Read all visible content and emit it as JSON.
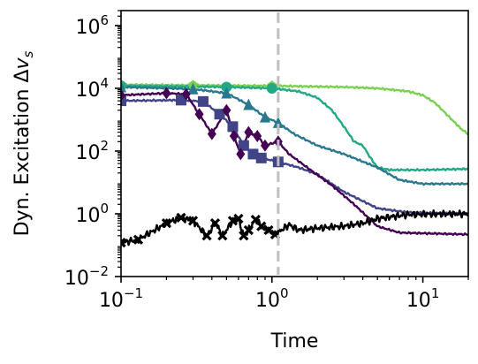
{
  "chart_data": {
    "type": "line",
    "xlabel": "Time",
    "ylabel": "Dyn. Excitation Δv_s",
    "xscale": "log",
    "yscale": "log",
    "xlim": [
      0.1,
      20
    ],
    "ylim": [
      0.01,
      3000000
    ],
    "x_ticks": [
      {
        "value": 0.1,
        "base": "10",
        "exp": "−1"
      },
      {
        "value": 1,
        "base": "10",
        "exp": "0"
      },
      {
        "value": 10,
        "base": "10",
        "exp": "1"
      }
    ],
    "y_ticks": [
      {
        "value": 0.01,
        "base": "10",
        "exp": "−2"
      },
      {
        "value": 1,
        "base": "10",
        "exp": "0"
      },
      {
        "value": 100,
        "base": "10",
        "exp": "2"
      },
      {
        "value": 10000,
        "base": "10",
        "exp": "4"
      },
      {
        "value": 1000000,
        "base": "10",
        "exp": "6"
      }
    ],
    "vline": {
      "x": 1.1,
      "color": "#bfbfbf",
      "style": "dashed"
    },
    "marker_cutoff_x": 1.1,
    "series": [
      {
        "color": "#7ad151",
        "marker": "pentagon",
        "points": [
          [
            0.1,
            13000
          ],
          [
            0.3,
            12500
          ],
          [
            1,
            12000
          ],
          [
            3,
            11000
          ],
          [
            5,
            10000
          ],
          [
            8,
            8000
          ],
          [
            10,
            6000
          ],
          [
            12,
            3500
          ],
          [
            15,
            1200
          ],
          [
            18,
            500
          ],
          [
            20,
            350
          ]
        ]
      },
      {
        "color": "#22a884",
        "marker": "circle",
        "points": [
          [
            0.1,
            12000
          ],
          [
            0.5,
            11000
          ],
          [
            1,
            10000
          ],
          [
            1.5,
            8000
          ],
          [
            2,
            5000
          ],
          [
            2.5,
            2000
          ],
          [
            3,
            600
          ],
          [
            3.5,
            200
          ],
          [
            4,
            150
          ],
          [
            4.5,
            60
          ],
          [
            5,
            30
          ],
          [
            6,
            25
          ],
          [
            10,
            25
          ],
          [
            20,
            27
          ]
        ]
      },
      {
        "color": "#2a788e",
        "marker": "triangle",
        "points": [
          [
            0.1,
            11000
          ],
          [
            0.3,
            9500
          ],
          [
            0.5,
            7000
          ],
          [
            0.7,
            3000
          ],
          [
            0.9,
            1200
          ],
          [
            1.1,
            800
          ],
          [
            1.4,
            350
          ],
          [
            2,
            150
          ],
          [
            3,
            80
          ],
          [
            5,
            30
          ],
          [
            7,
            12
          ],
          [
            10,
            9
          ],
          [
            20,
            9
          ]
        ]
      },
      {
        "color": "#414487",
        "marker": "square",
        "points": [
          [
            0.1,
            4000
          ],
          [
            0.25,
            4200
          ],
          [
            0.35,
            3800
          ],
          [
            0.45,
            1500
          ],
          [
            0.55,
            600
          ],
          [
            0.65,
            150
          ],
          [
            0.75,
            80
          ],
          [
            0.85,
            60
          ],
          [
            1.1,
            45
          ],
          [
            1.5,
            30
          ],
          [
            2,
            18
          ],
          [
            3,
            5
          ],
          [
            5,
            1.5
          ],
          [
            8,
            1.1
          ],
          [
            20,
            1
          ]
        ]
      },
      {
        "color": "#440154",
        "marker": "diamond",
        "points": [
          [
            0.1,
            6000
          ],
          [
            0.2,
            7000
          ],
          [
            0.27,
            6500
          ],
          [
            0.33,
            1500
          ],
          [
            0.4,
            350
          ],
          [
            0.5,
            2000
          ],
          [
            0.56,
            300
          ],
          [
            0.62,
            80
          ],
          [
            0.7,
            400
          ],
          [
            0.8,
            300
          ],
          [
            0.9,
            150
          ],
          [
            1.1,
            200
          ],
          [
            1.3,
            80
          ],
          [
            1.8,
            25
          ],
          [
            2.5,
            8
          ],
          [
            3.5,
            2
          ],
          [
            5,
            0.4
          ],
          [
            7,
            0.25
          ],
          [
            20,
            0.22
          ]
        ]
      },
      {
        "color": "#000000",
        "marker": "x",
        "points": [
          [
            0.1,
            0.12
          ],
          [
            0.13,
            0.15
          ],
          [
            0.2,
            0.5
          ],
          [
            0.25,
            0.75
          ],
          [
            0.3,
            0.6
          ],
          [
            0.37,
            0.2
          ],
          [
            0.42,
            0.5
          ],
          [
            0.47,
            0.2
          ],
          [
            0.55,
            0.6
          ],
          [
            0.6,
            0.7
          ],
          [
            0.65,
            0.2
          ],
          [
            0.7,
            0.3
          ],
          [
            0.78,
            0.65
          ],
          [
            0.85,
            0.4
          ],
          [
            0.95,
            0.3
          ],
          [
            1.05,
            0.22
          ],
          [
            1.3,
            0.45
          ],
          [
            1.5,
            0.3
          ],
          [
            2,
            0.35
          ],
          [
            3,
            0.4
          ],
          [
            4,
            0.5
          ],
          [
            5,
            0.7
          ],
          [
            8,
            0.95
          ],
          [
            20,
            1
          ]
        ]
      }
    ]
  }
}
